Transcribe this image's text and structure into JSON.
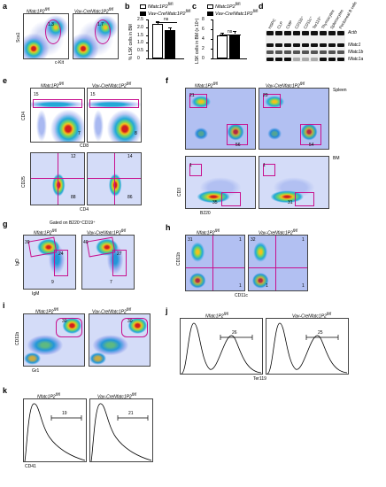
{
  "panels": {
    "a": {
      "label": "a",
      "t1": "Nfatc1P2",
      "t2": "Vav-CreNfatc1P2",
      "g1": "1.3",
      "g2": "1.7",
      "xaxis": "c-Kit",
      "yaxis": "Sca1"
    },
    "b": {
      "label": "b",
      "leg1": "Nfatc1P2",
      "leg2": "Vav-CreNfatc1P2",
      "ylabel": "% LSK cells in BM",
      "ns": "ns",
      "ticks": [
        "2.5",
        "2.0",
        "1.5",
        "1.0",
        "0.5",
        "0"
      ]
    },
    "c": {
      "label": "c",
      "leg1": "Nfatc1P2",
      "leg2": "Vav-CreNfatc1P2",
      "ylabel": "LSK cells in BM (x 10⁵)",
      "ns": "ns",
      "ticks": [
        "8",
        "6",
        "4",
        "2",
        "0"
      ]
    },
    "d": {
      "label": "d",
      "cols": [
        "HSPC",
        "CLP",
        "CMP",
        "CD11b⁺",
        "CD11c⁺",
        "Ter119⁺",
        "Thymocytes",
        "Splenocytes",
        "Peritoneal B cells"
      ],
      "rows": [
        "Actb",
        "Nfatc1",
        "Nfatc1b",
        "Nfatc1a"
      ]
    },
    "e": {
      "label": "e",
      "t1": "Nfatc1P2",
      "t2": "Vav-CreNfatc1P2",
      "top1a": "15",
      "top1b": "7",
      "top2a": "15",
      "top2b": "8",
      "bot1a": "12",
      "bot1b": "88",
      "bot2a": "14",
      "bot2b": "86",
      "x1": "CD8",
      "y1": "CD4",
      "x2": "CD4",
      "y2": "CD25"
    },
    "f": {
      "label": "f",
      "t1": "Nfatc1P2",
      "t2": "Vav-CreNfatc1P2",
      "spleen": "Spleen",
      "bm": "BM",
      "s1a": "21",
      "s1b": "56",
      "s2a": "20",
      "s2b": "54",
      "b1a": "1",
      "b1b": "35",
      "b2a": "1",
      "b2b": "31",
      "xaxis": "B220",
      "yaxis": "CD3"
    },
    "g": {
      "label": "g",
      "gated": "Gated on B220⁺CD19⁺",
      "t1": "Nfatc1P2",
      "t2": "Vav-CreNfatc1P2",
      "n1a": "39",
      "n1b": "24",
      "n1c": "9",
      "n2a": "40",
      "n2b": "27",
      "n2c": "7",
      "xaxis": "IgM",
      "yaxis": "IgD"
    },
    "h": {
      "label": "h",
      "t1": "Nfatc1P2",
      "t2": "Vav-CreNfatc1P2",
      "q1": [
        "31",
        "1",
        "1"
      ],
      "q2": [
        "32",
        "1",
        "1",
        "1"
      ],
      "xaxis": "CD11c",
      "yaxis": "CD11b"
    },
    "i": {
      "label": "i",
      "t1": "Nfatc1P2",
      "t2": "Vav-CreNfatc1P2",
      "n1": "30",
      "n2": "30",
      "xaxis": "Gr1",
      "yaxis": "CD11b"
    },
    "j": {
      "label": "j",
      "t1": "Nfatc1P2",
      "t2": "Vav-CreNfatc1P2",
      "n1": "26",
      "n2": "25",
      "xaxis": "Ter119"
    },
    "k": {
      "label": "k",
      "t1": "Nfatc1P2",
      "t2": "Vav-CreNfatc1P2",
      "n1": "19",
      "n2": "21",
      "xaxis": "CD41"
    }
  },
  "chart_data": [
    {
      "type": "bar",
      "panel": "b",
      "categories": [
        "Nfatc1P2fl/fl",
        "Vav-CreNfatc1P2fl/fl"
      ],
      "values": [
        2.2,
        1.8
      ],
      "ylabel": "% LSK cells in BM",
      "ylim": [
        0,
        2.5
      ]
    },
    {
      "type": "bar",
      "panel": "c",
      "categories": [
        "Nfatc1P2fl/fl",
        "Vav-CreNfatc1P2fl/fl"
      ],
      "values": [
        4.7,
        5.0
      ],
      "ylabel": "LSK cells in BM (x 10⁵)",
      "ylim": [
        0,
        8
      ]
    }
  ]
}
